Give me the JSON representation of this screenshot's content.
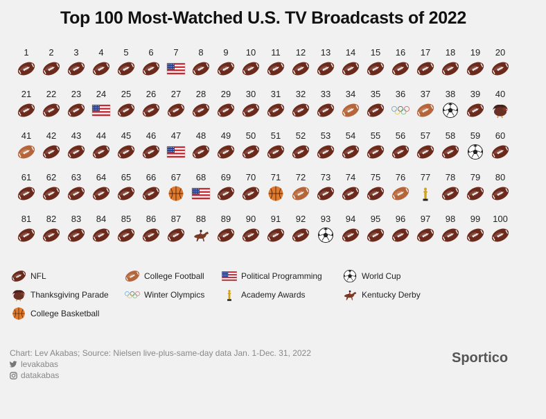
{
  "title": "Top 100 Most-Watched U.S. TV Broadcasts of 2022",
  "chart_data": {
    "type": "table",
    "title": "Top 100 Most-Watched U.S. TV Broadcasts of 2022",
    "rank_labels": [
      "1",
      "2",
      "3",
      "4",
      "5",
      "6",
      "7",
      "8",
      "9",
      "10",
      "11",
      "12",
      "13",
      "14",
      "15",
      "16",
      "17",
      "18",
      "19",
      "20",
      "21",
      "22",
      "23",
      "24",
      "25",
      "26",
      "27",
      "28",
      "29",
      "30",
      "31",
      "32",
      "33",
      "34",
      "35",
      "36",
      "37",
      "38",
      "39",
      "40",
      "41",
      "42",
      "43",
      "44",
      "45",
      "46",
      "47",
      "48",
      "49",
      "50",
      "51",
      "52",
      "53",
      "54",
      "55",
      "56",
      "57",
      "58",
      "59",
      "60",
      "61",
      "62",
      "63",
      "64",
      "65",
      "66",
      "67",
      "68",
      "69",
      "70",
      "71",
      "72",
      "73",
      "74",
      "75",
      "76",
      "77",
      "78",
      "79",
      "80",
      "81",
      "82",
      "83",
      "84",
      "85",
      "86",
      "87",
      "88",
      "89",
      "90",
      "91",
      "92",
      "93",
      "94",
      "95",
      "96",
      "97",
      "98",
      "99",
      "100"
    ],
    "categories": [
      "NFL",
      "Thanksgiving Parade",
      "College Basketball",
      "College Football",
      "Winter Olympics",
      "Political Programming",
      "Academy Awards",
      "World Cup",
      "Kentucky Derby"
    ],
    "broadcasts": [
      "NFL",
      "NFL",
      "NFL",
      "NFL",
      "NFL",
      "NFL",
      "Political Programming",
      "NFL",
      "NFL",
      "NFL",
      "NFL",
      "NFL",
      "NFL",
      "NFL",
      "NFL",
      "NFL",
      "NFL",
      "NFL",
      "NFL",
      "NFL",
      "NFL",
      "NFL",
      "NFL",
      "Political Programming",
      "NFL",
      "NFL",
      "NFL",
      "NFL",
      "NFL",
      "NFL",
      "NFL",
      "NFL",
      "NFL",
      "College Football",
      "NFL",
      "Winter Olympics",
      "College Football",
      "World Cup",
      "NFL",
      "Thanksgiving Parade",
      "College Football",
      "NFL",
      "NFL",
      "NFL",
      "NFL",
      "NFL",
      "Political Programming",
      "NFL",
      "NFL",
      "NFL",
      "NFL",
      "NFL",
      "NFL",
      "NFL",
      "NFL",
      "NFL",
      "NFL",
      "NFL",
      "World Cup",
      "NFL",
      "NFL",
      "NFL",
      "NFL",
      "NFL",
      "NFL",
      "NFL",
      "College Basketball",
      "Political Programming",
      "NFL",
      "NFL",
      "College Basketball",
      "College Football",
      "NFL",
      "NFL",
      "NFL",
      "College Football",
      "Academy Awards",
      "NFL",
      "NFL",
      "NFL",
      "NFL",
      "NFL",
      "NFL",
      "NFL",
      "NFL",
      "NFL",
      "NFL",
      "Kentucky Derby",
      "NFL",
      "NFL",
      "NFL",
      "NFL",
      "World Cup",
      "NFL",
      "NFL",
      "NFL",
      "NFL",
      "NFL",
      "NFL",
      "NFL"
    ]
  },
  "legend": [
    {
      "label": "NFL",
      "icon": "nfl-football-icon"
    },
    {
      "label": "College Football",
      "icon": "college-football-icon"
    },
    {
      "label": "Political Programming",
      "icon": "us-flag-icon"
    },
    {
      "label": "World Cup",
      "icon": "soccer-ball-icon"
    },
    {
      "label": "Thanksgiving Parade",
      "icon": "turkey-icon"
    },
    {
      "label": "Winter Olympics",
      "icon": "olympic-rings-icon"
    },
    {
      "label": "Academy Awards",
      "icon": "oscar-statuette-icon"
    },
    {
      "label": "Kentucky Derby",
      "icon": "horse-racing-icon"
    },
    {
      "label": "College Basketball",
      "icon": "basketball-icon"
    }
  ],
  "colors": {
    "nfl": "#6b2a1c",
    "college_football": "#b5653a",
    "flag_red": "#c8202a",
    "flag_blue": "#2b3f8f",
    "basketball": "#e07a2c",
    "gold": "#d4a21a",
    "turkey": "#6a2f25",
    "horse": "#7a3b24",
    "background": "#f1f1f1"
  },
  "footer": {
    "source": "Chart: Lev Akabas; Source: Nielsen live-plus-same-day data Jan. 1-Dec. 31, 2022",
    "twitter": "levakabas",
    "instagram": "datakabas"
  },
  "brand": "Sportico"
}
